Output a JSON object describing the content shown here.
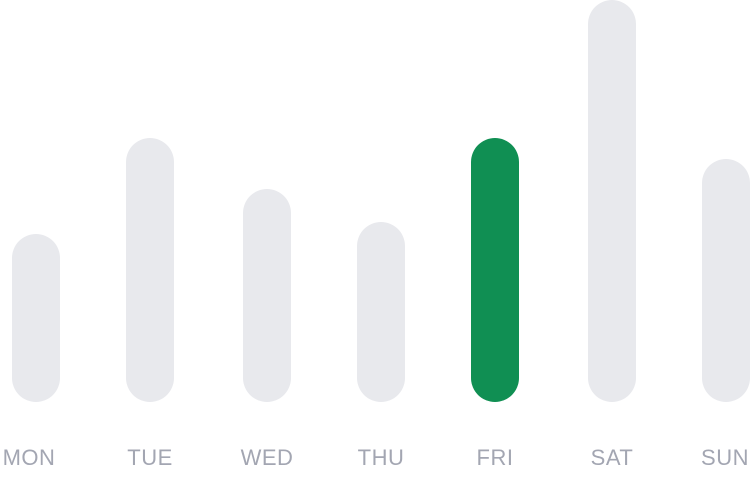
{
  "chart_data": {
    "type": "bar",
    "categories": [
      "MON",
      "TUE",
      "WED",
      "THU",
      "FRI",
      "SAT",
      "SUN"
    ],
    "values": [
      168,
      264,
      213,
      180,
      264,
      402,
      243
    ],
    "ylim": [
      0,
      402
    ],
    "highlight_category": "FRI",
    "grid": false,
    "legend": "none",
    "colors": {
      "bar": "#e8e9ed",
      "highlight": "#108f53",
      "label": "#a3a6b2"
    }
  }
}
